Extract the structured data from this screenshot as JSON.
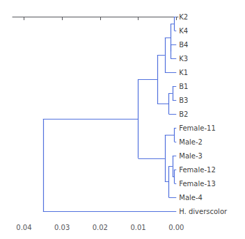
{
  "chart_data": {
    "type": "dendrogram",
    "tree": {
      "height": 0.035,
      "children": [
        {
          "height": 0.01,
          "children": [
            {
              "height": 0.005,
              "children": [
                {
                  "height": 0.003,
                  "children": [
                    {
                      "height": 0.0015,
                      "children": [
                        {
                          "height": 0.0005,
                          "children": [
                            "K2",
                            "K4"
                          ]
                        },
                        {
                          "height": 0.0015,
                          "children": [
                            "B4",
                            "K3"
                          ]
                        }
                      ]
                    },
                    "K1"
                  ]
                },
                {
                  "height": 0.002,
                  "children": [
                    {
                      "height": 0.001,
                      "children": [
                        "B1",
                        "B3"
                      ]
                    },
                    "B2"
                  ]
                }
              ]
            },
            {
              "height": 0.003,
              "children": [
                {
                  "height": 0.0005,
                  "children": [
                    "Female-11",
                    "Male-2"
                  ]
                },
                {
                  "height": 0.002,
                  "children": [
                    {
                      "height": 0.001,
                      "children": [
                        "Male-3",
                        {
                          "height": 0.0005,
                          "children": [
                            "Female-12",
                            "Female-13"
                          ]
                        }
                      ]
                    },
                    "Male-4"
                  ]
                }
              ]
            }
          ]
        },
        "H. diverscolor"
      ]
    },
    "xlim": [
      0.043,
      -0.0005
    ],
    "xticks": [
      0.04,
      0.03,
      0.02,
      0.01,
      {
        "value": 0,
        "label": "0.00"
      }
    ]
  }
}
